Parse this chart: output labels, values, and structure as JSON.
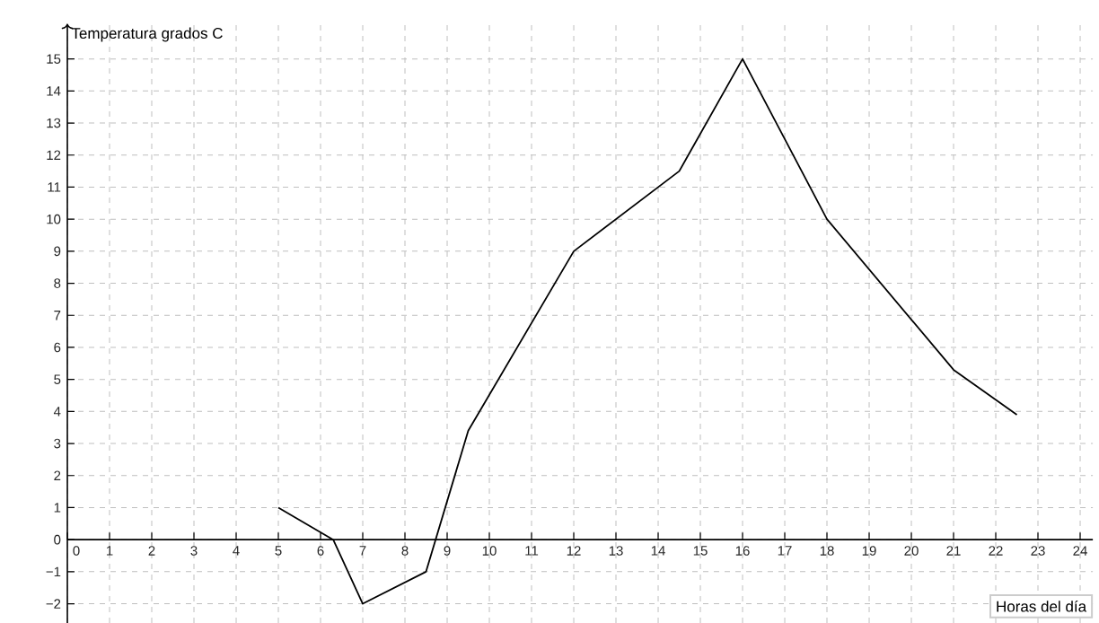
{
  "chart_data": {
    "type": "line",
    "xlabel": "Horas del día",
    "ylabel": "Temperatura grados C",
    "x": [
      5,
      6.3,
      7,
      8.5,
      9.5,
      12,
      14.5,
      16,
      18,
      21,
      22.5
    ],
    "series": [
      {
        "color": "#000000",
        "values": [
          1,
          0,
          -2,
          -1,
          3.4,
          9,
          11.5,
          15,
          10,
          5.3,
          3.9
        ]
      }
    ],
    "xlim": [
      0,
      24.3
    ],
    "ylim": [
      -2.6,
      16.1
    ],
    "xticks": [
      0,
      1,
      2,
      3,
      4,
      5,
      6,
      7,
      8,
      9,
      10,
      11,
      12,
      13,
      14,
      15,
      16,
      17,
      18,
      19,
      20,
      21,
      22,
      23,
      24
    ],
    "yticks": [
      {
        "value": -2,
        "label": "−2"
      },
      {
        "value": -1,
        "label": "−1"
      },
      0,
      1,
      2,
      3,
      4,
      5,
      6,
      7,
      8,
      9,
      10,
      11,
      12,
      13,
      14,
      15
    ],
    "grid": true
  }
}
